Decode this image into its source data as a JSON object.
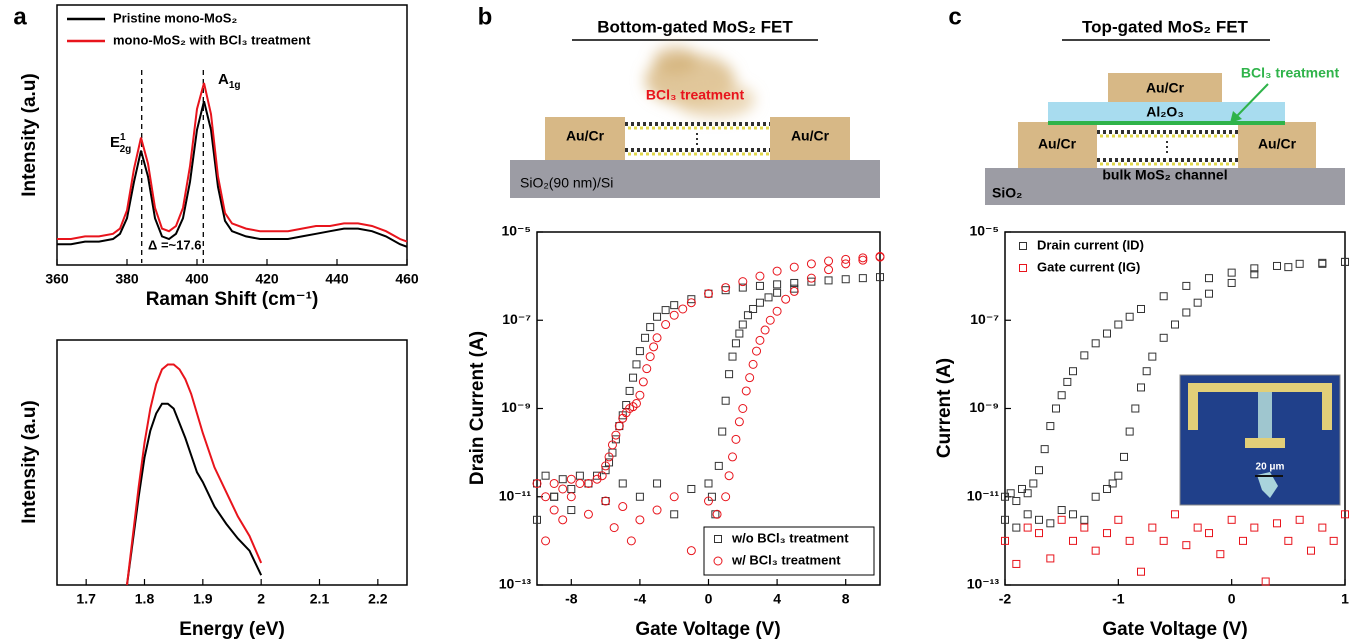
{
  "chart_data": [
    {
      "type": "line",
      "panel": "a",
      "xlabel": "Raman Shift (cm⁻¹)",
      "ylabel": "Intensity (a.u)",
      "xlim": [
        360,
        460
      ],
      "xticks": [
        360,
        380,
        400,
        420,
        440,
        460
      ],
      "ylim": [
        0,
        100
      ],
      "legend": "upper left",
      "x": [
        360,
        364,
        368,
        372,
        376,
        378,
        380,
        382,
        384,
        386,
        388,
        390,
        392,
        394,
        396,
        398,
        400,
        402,
        404,
        406,
        408,
        410,
        414,
        418,
        422,
        426,
        430,
        434,
        438,
        442,
        446,
        450,
        454,
        458,
        460
      ],
      "series": [
        {
          "name": "Pristine mono-MoS₂",
          "color": "#000000",
          "values": [
            8,
            8,
            9,
            9,
            10,
            12,
            18,
            32,
            44,
            34,
            18,
            11,
            10,
            12,
            18,
            32,
            52,
            63,
            52,
            30,
            17,
            13,
            11,
            10,
            10,
            10,
            11,
            12,
            13,
            14,
            14,
            13,
            11,
            8,
            7
          ]
        },
        {
          "name": "mono-MoS₂ with BCl₃ treatment",
          "color": "#e8141c",
          "values": [
            10,
            10,
            11,
            11,
            12,
            14,
            21,
            37,
            49,
            39,
            22,
            14,
            13,
            15,
            22,
            38,
            60,
            70,
            58,
            34,
            20,
            16,
            14,
            13,
            13,
            13,
            14,
            15,
            15,
            16,
            16,
            15,
            13,
            10,
            9
          ]
        }
      ],
      "reference_lines": [
        384.2,
        401.8
      ],
      "peak_labels": [
        {
          "text": "E",
          "sup": "1",
          "sub": "2g"
        },
        {
          "text": "A",
          "sub": "1g"
        }
      ],
      "annotations": [
        "Δ =~17.6"
      ]
    },
    {
      "type": "line",
      "xlabel": "Energy (eV)",
      "ylabel": "Intensity (a.u)",
      "xlim": [
        1.65,
        2.25
      ],
      "xticks": [
        1.7,
        1.8,
        1.9,
        2.0,
        2.1,
        2.2
      ],
      "ylim": [
        0,
        100
      ],
      "x": [
        1.77,
        1.78,
        1.79,
        1.8,
        1.81,
        1.82,
        1.83,
        1.84,
        1.85,
        1.86,
        1.87,
        1.88,
        1.89,
        1.9,
        1.92,
        1.94,
        1.96,
        1.98,
        2
      ],
      "series": [
        {
          "color": "#000000",
          "values": [
            0,
            18,
            36,
            52,
            63,
            70,
            74,
            74,
            72,
            66,
            60,
            53,
            46,
            42,
            32,
            25,
            19,
            14,
            4
          ]
        },
        {
          "color": "#e8141c",
          "values": [
            0,
            20,
            40,
            58,
            72,
            82,
            88,
            90,
            90,
            88,
            84,
            78,
            70,
            62,
            48,
            38,
            28,
            20,
            9
          ]
        }
      ]
    },
    {
      "type": "scatter",
      "panel": "b",
      "title": "Bottom-gated MoS₂ FET",
      "xlabel": "Gate Voltage (V)",
      "ylabel": "Drain Current (A)",
      "xlim": [
        -10,
        10
      ],
      "xticks": [
        -8,
        -4,
        0,
        4,
        8
      ],
      "log_y": true,
      "ylim": [
        1e-13,
        1e-05
      ],
      "yticks": [
        {
          "value": 1e-13,
          "label": "10⁻¹³"
        },
        {
          "value": 1e-11,
          "label": "10⁻¹¹"
        },
        {
          "value": 1e-09,
          "label": "10⁻⁹"
        },
        {
          "value": 1e-07,
          "label": "10⁻⁷"
        },
        {
          "value": 1e-05,
          "label": "10⁻⁵"
        }
      ],
      "legend": "lower right",
      "legend_frame": true,
      "series": [
        {
          "name": "w/o BCl₃ treatment",
          "color": "#333333",
          "marker": "square",
          "x": [
            -10,
            -9.5,
            -9,
            -8.5,
            -8,
            -7.5,
            -7,
            -6.5,
            -6,
            -5.8,
            -5.6,
            -5.4,
            -5.2,
            -5,
            -4.8,
            -4.6,
            -4.4,
            -4.2,
            -4,
            -3.7,
            -3.4,
            -3,
            -2.5,
            -2,
            -1,
            0,
            1,
            2,
            3,
            4,
            5,
            6,
            7,
            8,
            9,
            10,
            -10,
            -9,
            -8,
            -7,
            -6,
            -5,
            -4,
            -3,
            -2,
            -1,
            0,
            0.2,
            0.4,
            0.6,
            0.8,
            1,
            1.2,
            1.4,
            1.6,
            1.8,
            2,
            2.3,
            2.6,
            3,
            3.5,
            4,
            5
          ],
          "values": [
            2e-11,
            3e-11,
            1e-11,
            2.5e-11,
            1.5e-11,
            3e-11,
            2e-11,
            3e-11,
            4e-11,
            6e-11,
            1e-10,
            2e-10,
            4e-10,
            7e-10,
            1.2e-09,
            2.5e-09,
            5e-09,
            1e-08,
            2e-08,
            4e-08,
            7e-08,
            1.2e-07,
            1.7e-07,
            2.2e-07,
            3e-07,
            4e-07,
            4.8e-07,
            5.5e-07,
            6e-07,
            6.5e-07,
            7e-07,
            7.5e-07,
            8e-07,
            8.5e-07,
            9e-07,
            9.5e-07,
            3e-12,
            1e-11,
            5e-12,
            2e-11,
            8e-12,
            2e-11,
            1e-11,
            2e-11,
            4e-12,
            1.5e-11,
            2e-11,
            1e-11,
            4e-12,
            5e-11,
            3e-10,
            1.5e-09,
            6e-09,
            1.5e-08,
            3e-08,
            5e-08,
            8e-08,
            1.3e-07,
            1.8e-07,
            2.5e-07,
            3.3e-07,
            4.2e-07,
            5.2e-07
          ]
        },
        {
          "name": "w/ BCl₃ treatment",
          "color": "#e8141c",
          "marker": "circle",
          "x": [
            -10,
            -9.5,
            -9,
            -8.5,
            -8,
            -7.5,
            -7,
            -6.5,
            -6.2,
            -6,
            -5.8,
            -5.6,
            -5.4,
            -5.2,
            -5,
            -4.8,
            -4.6,
            -4.4,
            -4.2,
            -4,
            -3.8,
            -3.6,
            -3.4,
            -3.2,
            -3,
            -2.5,
            -2,
            -1.5,
            -1,
            0,
            1,
            2,
            3,
            4,
            5,
            6,
            7,
            8,
            9,
            10,
            -9.5,
            -9,
            -8.5,
            -8,
            -7,
            -6,
            -5.5,
            -5,
            -4.5,
            -4,
            -3,
            -2,
            -1,
            0,
            0.5,
            1,
            1.2,
            1.4,
            1.6,
            1.8,
            2,
            2.2,
            2.4,
            2.6,
            2.8,
            3,
            3.3,
            3.6,
            4,
            4.5,
            5,
            6,
            7,
            8,
            9,
            10
          ],
          "values": [
            2e-11,
            1e-11,
            2e-11,
            1.5e-11,
            2.5e-11,
            2e-11,
            2e-11,
            2.5e-11,
            3e-11,
            5e-11,
            8e-11,
            1.5e-10,
            2.5e-10,
            4e-10,
            6e-10,
            8e-10,
            1e-09,
            1.1e-09,
            1.3e-09,
            2e-09,
            4e-09,
            8e-09,
            1.5e-08,
            2.5e-08,
            4e-08,
            8e-08,
            1.3e-07,
            1.8e-07,
            2.5e-07,
            4e-07,
            5.5e-07,
            7.5e-07,
            1e-06,
            1.3e-06,
            1.6e-06,
            1.9e-06,
            2.2e-06,
            2.4e-06,
            2.6e-06,
            2.8e-06,
            1e-12,
            5e-12,
            3e-12,
            1e-11,
            4e-12,
            8e-12,
            2e-12,
            6e-12,
            1e-12,
            3e-12,
            5e-12,
            1e-11,
            6e-13,
            8e-12,
            4e-12,
            1e-11,
            3e-11,
            8e-11,
            2e-10,
            5e-10,
            1e-09,
            2.5e-09,
            5e-09,
            1e-08,
            2e-08,
            3.5e-08,
            6e-08,
            1e-07,
            1.6e-07,
            3e-07,
            4.5e-07,
            9e-07,
            1.4e-06,
            1.9e-06,
            2.3e-06,
            2.7e-06
          ]
        }
      ]
    },
    {
      "type": "scatter",
      "panel": "c",
      "title": "Top-gated MoS₂ FET",
      "xlabel": "Gate Voltage (V)",
      "ylabel": "Current (A)",
      "xlim": [
        -2,
        1
      ],
      "xticks": [
        -2,
        -1,
        0,
        1
      ],
      "log_y": true,
      "ylim": [
        1e-13,
        1e-05
      ],
      "yticks": [
        {
          "value": 1e-13,
          "label": "10⁻¹³"
        },
        {
          "value": 1e-11,
          "label": "10⁻¹¹"
        },
        {
          "value": 1e-09,
          "label": "10⁻⁹"
        },
        {
          "value": 1e-07,
          "label": "10⁻⁷"
        },
        {
          "value": 1e-05,
          "label": "10⁻⁵"
        }
      ],
      "legend": "upper left",
      "legend_frame": false,
      "series": [
        {
          "name": "Drain current (ID)",
          "color": "#333333",
          "marker": "square",
          "x": [
            -2,
            -1.95,
            -1.9,
            -1.85,
            -1.8,
            -1.75,
            -1.7,
            -1.65,
            -1.6,
            -1.55,
            -1.5,
            -1.45,
            -1.4,
            -1.3,
            -1.2,
            -1.1,
            -1,
            -0.9,
            -0.8,
            -0.6,
            -0.4,
            -0.2,
            0,
            0.2,
            0.4,
            0.6,
            0.8,
            1,
            -2,
            -1.9,
            -1.8,
            -1.7,
            -1.6,
            -1.5,
            -1.4,
            -1.3,
            -1.2,
            -1.1,
            -1.05,
            -1,
            -0.95,
            -0.9,
            -0.85,
            -0.8,
            -0.75,
            -0.7,
            -0.6,
            -0.5,
            -0.4,
            -0.3,
            -0.2,
            0,
            0.2,
            0.5,
            0.8,
            1
          ],
          "values": [
            1e-11,
            1.2e-11,
            8e-12,
            1.5e-11,
            1.2e-11,
            2e-11,
            4e-11,
            1.2e-10,
            4e-10,
            1e-09,
            2e-09,
            4e-09,
            7e-09,
            1.6e-08,
            3e-08,
            5e-08,
            8e-08,
            1.2e-07,
            1.8e-07,
            3.5e-07,
            6e-07,
            9e-07,
            1.2e-06,
            1.5e-06,
            1.7e-06,
            1.9e-06,
            2e-06,
            2.1e-06,
            3e-12,
            2e-12,
            4e-12,
            3e-12,
            2.5e-12,
            5e-12,
            4e-12,
            3e-12,
            1e-11,
            1.5e-11,
            2e-11,
            3e-11,
            8e-11,
            3e-10,
            1e-09,
            3e-09,
            7e-09,
            1.5e-08,
            4e-08,
            8e-08,
            1.5e-07,
            2.5e-07,
            4e-07,
            7e-07,
            1.1e-06,
            1.6e-06,
            1.9e-06,
            2.1e-06
          ]
        },
        {
          "name": "Gate current (IG)",
          "color": "#e8141c",
          "marker": "square",
          "x": [
            -2,
            -1.9,
            -1.8,
            -1.7,
            -1.6,
            -1.5,
            -1.4,
            -1.3,
            -1.2,
            -1.1,
            -1,
            -0.9,
            -0.8,
            -0.7,
            -0.6,
            -0.5,
            -0.4,
            -0.3,
            -0.2,
            -0.1,
            0,
            0.1,
            0.2,
            0.3,
            0.4,
            0.5,
            0.6,
            0.7,
            0.8,
            0.9,
            1
          ],
          "values": [
            1e-12,
            3e-13,
            2e-12,
            1.5e-12,
            4e-13,
            3e-12,
            1e-12,
            2e-12,
            6e-13,
            1.5e-12,
            3e-12,
            1e-12,
            2e-13,
            2e-12,
            1e-12,
            4e-12,
            8e-13,
            2e-12,
            1.5e-12,
            5e-13,
            3e-12,
            1e-12,
            2e-12,
            1.2e-13,
            2.5e-12,
            1e-12,
            3e-12,
            6e-13,
            2e-12,
            1e-12,
            4e-12
          ]
        }
      ]
    }
  ],
  "diagrams": {
    "b": {
      "treatment": "BCl₃ treatment",
      "contact_left": "Au/Cr",
      "contact_right": "Au/Cr",
      "substrate": "SiO₂(90 nm)/Si"
    },
    "c": {
      "treatment": "BCl₃ treatment",
      "top_contact": "Au/Cr",
      "dielectric": "Al₂O₃",
      "contact_left": "Au/Cr",
      "contact_right": "Au/Cr",
      "channel": "bulk MoS₂ channel",
      "substrate": "SiO₂",
      "inset_scale": "20 μm"
    }
  }
}
